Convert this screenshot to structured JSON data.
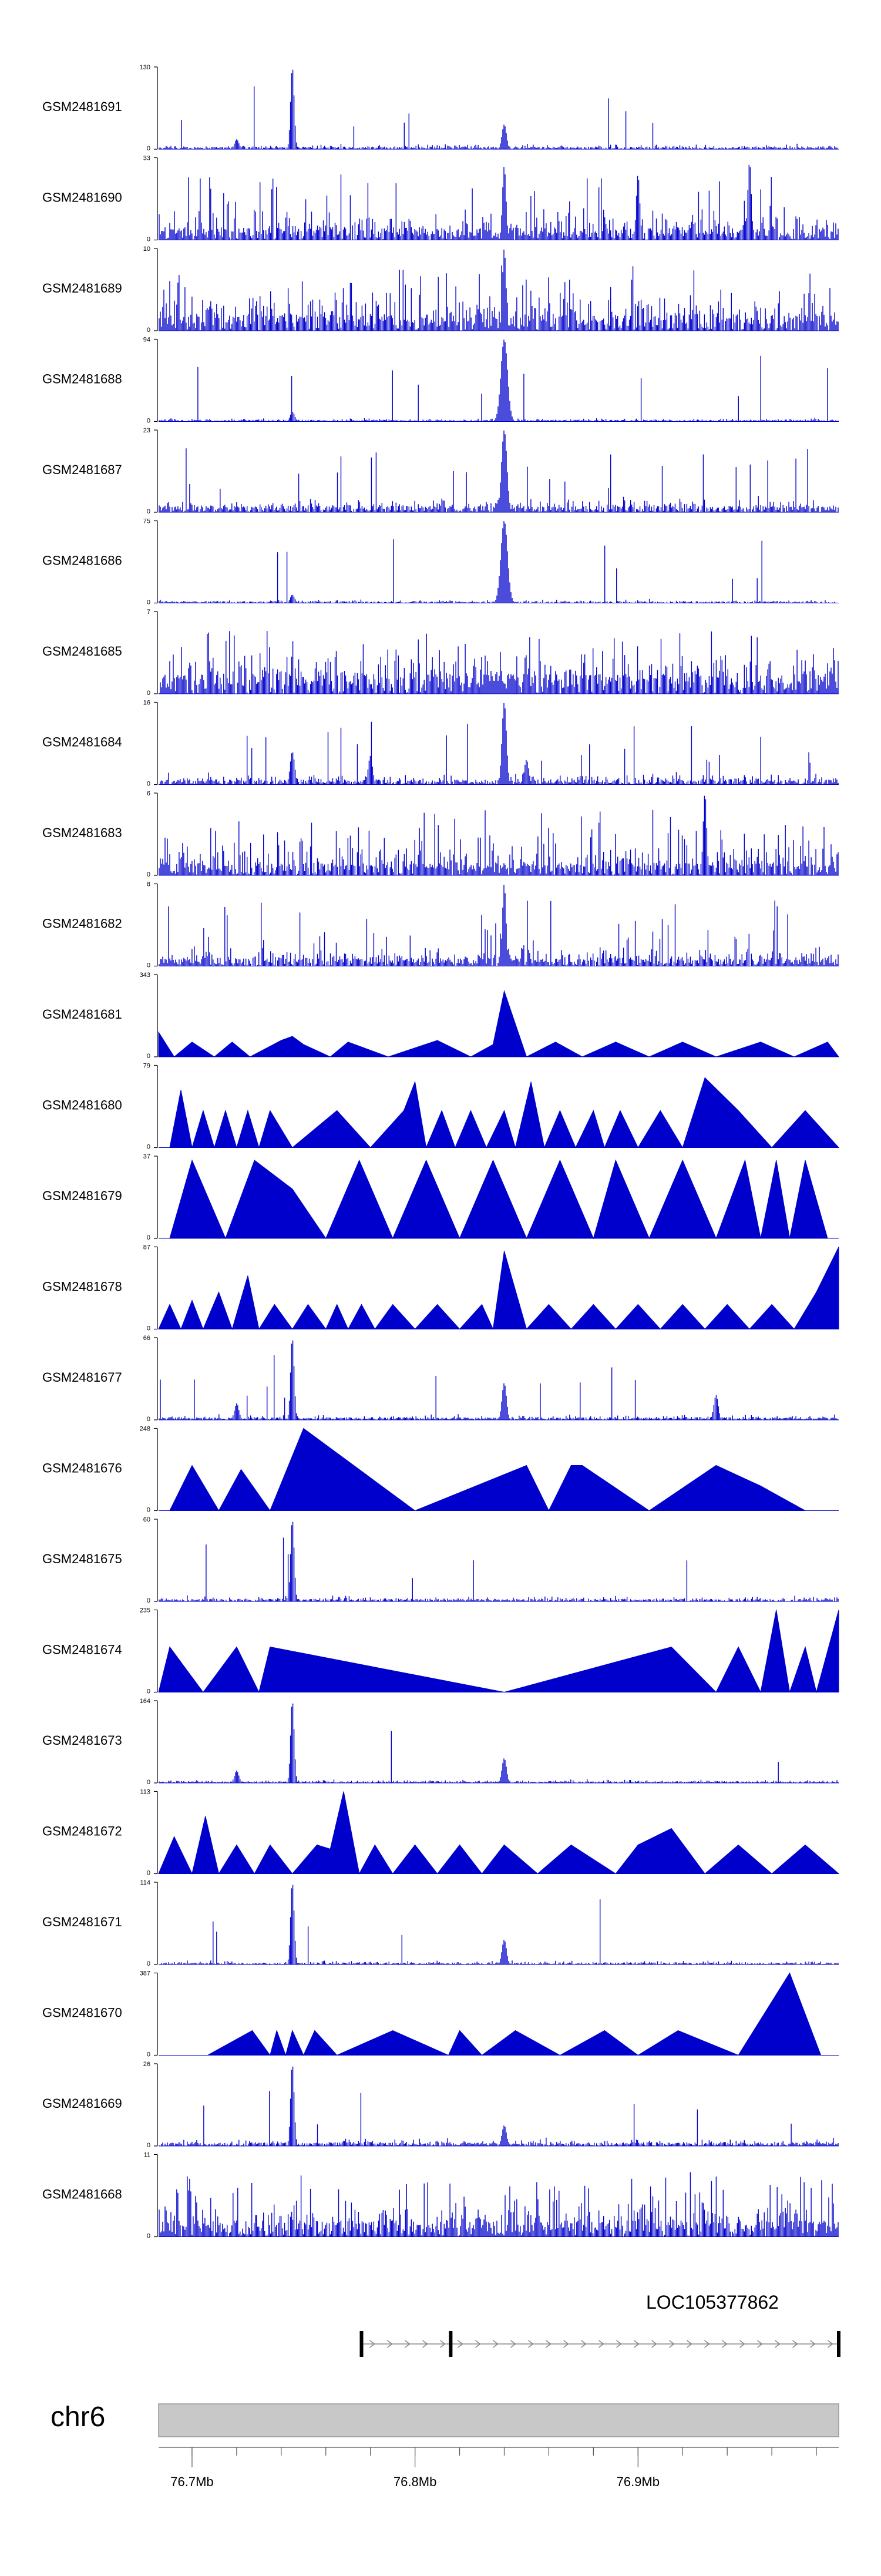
{
  "chart_data": {
    "type": "area",
    "color": "#0000cc",
    "tracks": [
      {
        "name": "GSM2481691",
        "ymin": "0",
        "ymax": "130",
        "max": 130,
        "style": "spiky",
        "baseline": 0.03,
        "noise": 0.05,
        "spikeRate": 0.02,
        "peaks": [
          {
            "x": 76.745,
            "h": 1.0,
            "w": 0.0008
          },
          {
            "x": 76.84,
            "h": 0.3,
            "w": 0.001
          },
          {
            "x": 76.72,
            "h": 0.12,
            "w": 0.001
          }
        ]
      },
      {
        "name": "GSM2481690",
        "ymin": "0",
        "ymax": "33",
        "max": 33,
        "style": "dense",
        "baseline": 0.15,
        "noise": 0.35,
        "spikeRate": 0.08,
        "peaks": [
          {
            "x": 76.84,
            "h": 0.9,
            "w": 0.0008
          },
          {
            "x": 76.95,
            "h": 0.95,
            "w": 0.0008
          },
          {
            "x": 76.9,
            "h": 0.8,
            "w": 0.0008
          }
        ]
      },
      {
        "name": "GSM2481689",
        "ymin": "0",
        "ymax": "10",
        "max": 10,
        "style": "dense",
        "baseline": 0.2,
        "noise": 0.5,
        "spikeRate": 0.12,
        "peaks": [
          {
            "x": 76.84,
            "h": 1.0,
            "w": 0.0008
          }
        ]
      },
      {
        "name": "GSM2481688",
        "ymin": "0",
        "ymax": "94",
        "max": 94,
        "style": "spiky",
        "baseline": 0.02,
        "noise": 0.03,
        "spikeRate": 0.01,
        "peaks": [
          {
            "x": 76.84,
            "h": 1.0,
            "w": 0.0015
          },
          {
            "x": 76.745,
            "h": 0.12,
            "w": 0.001
          }
        ]
      },
      {
        "name": "GSM2481687",
        "ymin": "0",
        "ymax": "23",
        "max": 23,
        "style": "spiky",
        "baseline": 0.08,
        "noise": 0.15,
        "spikeRate": 0.04,
        "peaks": [
          {
            "x": 76.84,
            "h": 1.0,
            "w": 0.0012
          }
        ]
      },
      {
        "name": "GSM2481686",
        "ymin": "0",
        "ymax": "75",
        "max": 75,
        "style": "spiky",
        "baseline": 0.02,
        "noise": 0.03,
        "spikeRate": 0.01,
        "peaks": [
          {
            "x": 76.84,
            "h": 1.0,
            "w": 0.0015
          },
          {
            "x": 76.745,
            "h": 0.1,
            "w": 0.001
          }
        ]
      },
      {
        "name": "GSM2481685",
        "ymin": "0",
        "ymax": "7",
        "max": 7,
        "style": "dense",
        "baseline": 0.25,
        "noise": 0.45,
        "spikeRate": 0.1,
        "peaks": []
      },
      {
        "name": "GSM2481684",
        "ymin": "0",
        "ymax": "16",
        "max": 16,
        "style": "spiky",
        "baseline": 0.06,
        "noise": 0.12,
        "spikeRate": 0.03,
        "peaks": [
          {
            "x": 76.84,
            "h": 1.0,
            "w": 0.001
          },
          {
            "x": 76.745,
            "h": 0.4,
            "w": 0.001
          },
          {
            "x": 76.78,
            "h": 0.35,
            "w": 0.001
          },
          {
            "x": 76.85,
            "h": 0.3,
            "w": 0.001
          }
        ]
      },
      {
        "name": "GSM2481683",
        "ymin": "0",
        "ymax": "6",
        "max": 6,
        "style": "dense",
        "baseline": 0.15,
        "noise": 0.5,
        "spikeRate": 0.1,
        "peaks": [
          {
            "x": 76.93,
            "h": 1.0,
            "w": 0.0008
          }
        ]
      },
      {
        "name": "GSM2481682",
        "ymin": "0",
        "ymax": "8",
        "max": 8,
        "style": "spiky",
        "baseline": 0.1,
        "noise": 0.25,
        "spikeRate": 0.06,
        "peaks": [
          {
            "x": 76.84,
            "h": 1.0,
            "w": 0.0008
          }
        ]
      },
      {
        "name": "GSM2481681",
        "ymin": "0",
        "ymax": "343",
        "max": 343,
        "style": "tri",
        "xs": [
          76.685,
          76.692,
          76.7,
          76.71,
          76.718,
          76.726,
          76.74,
          76.745,
          76.75,
          76.762,
          76.77,
          76.788,
          76.81,
          76.825,
          76.835,
          76.84,
          76.85,
          76.863,
          76.875,
          76.89,
          76.905,
          76.92,
          76.935,
          76.955,
          76.97,
          76.985,
          76.99
        ],
        "ys": [
          0.3,
          0,
          0.18,
          0,
          0.18,
          0,
          0.2,
          0.25,
          0.15,
          0,
          0.18,
          0,
          0.2,
          0,
          0.15,
          0.8,
          0,
          0.18,
          0,
          0.18,
          0,
          0.18,
          0,
          0.18,
          0,
          0.18,
          0
        ]
      },
      {
        "name": "GSM2481680",
        "ymin": "0",
        "ymax": "79",
        "max": 79,
        "style": "tri",
        "xs": [
          76.69,
          76.695,
          76.7,
          76.705,
          76.71,
          76.715,
          76.72,
          76.725,
          76.73,
          76.735,
          76.745,
          76.765,
          76.78,
          76.795,
          76.8,
          76.805,
          76.812,
          76.818,
          76.825,
          76.832,
          76.84,
          76.845,
          76.852,
          76.858,
          76.865,
          76.872,
          76.88,
          76.885,
          76.892,
          76.9,
          76.91,
          76.92,
          76.93,
          76.945,
          76.96,
          76.975,
          76.99
        ],
        "ys": [
          0,
          0.7,
          0,
          0.45,
          0,
          0.45,
          0,
          0.45,
          0,
          0.45,
          0,
          0.45,
          0,
          0.45,
          0.8,
          0,
          0.45,
          0,
          0.45,
          0,
          0.45,
          0,
          0.8,
          0,
          0.45,
          0,
          0.45,
          0,
          0.45,
          0,
          0.45,
          0,
          0.85,
          0.45,
          0,
          0.45,
          0
        ]
      },
      {
        "name": "GSM2481679",
        "ymin": "0",
        "ymax": "37",
        "max": 37,
        "style": "tri",
        "xs": [
          76.69,
          76.7,
          76.715,
          76.728,
          76.745,
          76.76,
          76.775,
          76.79,
          76.805,
          76.82,
          76.835,
          76.85,
          76.865,
          76.88,
          76.89,
          76.905,
          76.92,
          76.935,
          76.948,
          76.955,
          76.962,
          76.968,
          76.975,
          76.985
        ],
        "ys": [
          0,
          0.95,
          0,
          0.95,
          0.6,
          0,
          0.95,
          0,
          0.95,
          0,
          0.95,
          0,
          0.95,
          0,
          0.95,
          0,
          0.95,
          0,
          0.95,
          0,
          0.95,
          0,
          0.95,
          0
        ]
      },
      {
        "name": "GSM2481678",
        "ymin": "0",
        "ymax": "87",
        "max": 87,
        "style": "tri",
        "xs": [
          76.685,
          76.69,
          76.695,
          76.7,
          76.705,
          76.712,
          76.718,
          76.725,
          76.73,
          76.737,
          76.745,
          76.752,
          76.76,
          76.765,
          76.77,
          76.776,
          76.782,
          76.79,
          76.8,
          76.81,
          76.82,
          76.83,
          76.835,
          76.84,
          76.85,
          76.86,
          76.87,
          76.88,
          76.89,
          76.9,
          76.91,
          76.92,
          76.93,
          76.94,
          76.95,
          76.96,
          76.97,
          76.98,
          76.99
        ],
        "ys": [
          0,
          0.3,
          0,
          0.35,
          0,
          0.45,
          0,
          0.65,
          0,
          0.3,
          0,
          0.3,
          0,
          0.3,
          0,
          0.3,
          0,
          0.3,
          0,
          0.3,
          0,
          0.3,
          0,
          0.95,
          0,
          0.3,
          0,
          0.3,
          0,
          0.3,
          0,
          0.3,
          0,
          0.3,
          0,
          0.3,
          0,
          0.45,
          1.0
        ]
      },
      {
        "name": "GSM2481677",
        "ymin": "0",
        "ymax": "66",
        "max": 66,
        "style": "spiky",
        "baseline": 0.03,
        "noise": 0.05,
        "spikeRate": 0.02,
        "peaks": [
          {
            "x": 76.745,
            "h": 1.0,
            "w": 0.0008
          },
          {
            "x": 76.84,
            "h": 0.45,
            "w": 0.001
          },
          {
            "x": 76.935,
            "h": 0.3,
            "w": 0.001
          },
          {
            "x": 76.72,
            "h": 0.2,
            "w": 0.001
          }
        ]
      },
      {
        "name": "GSM2481676",
        "ymin": "0",
        "ymax": "248",
        "max": 248,
        "style": "tri",
        "xs": [
          76.69,
          76.7,
          76.712,
          76.722,
          76.735,
          76.75,
          76.8,
          76.85,
          76.86,
          76.87,
          76.875,
          76.905,
          76.935,
          76.955,
          76.975
        ],
        "ys": [
          0,
          0.55,
          0,
          0.5,
          0,
          1.0,
          0,
          0.55,
          0,
          0.55,
          0.55,
          0,
          0.55,
          0.3,
          0
        ]
      },
      {
        "name": "GSM2481675",
        "ymin": "0",
        "ymax": "60",
        "max": 60,
        "style": "spiky",
        "baseline": 0.03,
        "noise": 0.05,
        "spikeRate": 0.015,
        "peaks": [
          {
            "x": 76.745,
            "h": 1.0,
            "w": 0.0008
          }
        ]
      },
      {
        "name": "GSM2481674",
        "ymin": "0",
        "ymax": "235",
        "max": 235,
        "style": "tri",
        "xs": [
          76.685,
          76.69,
          76.705,
          76.72,
          76.73,
          76.735,
          76.84,
          76.915,
          76.935,
          76.945,
          76.955,
          76.962,
          76.968,
          76.975,
          76.98,
          76.99
        ],
        "ys": [
          0,
          0.55,
          0,
          0.55,
          0,
          0.55,
          0,
          0.55,
          0,
          0.55,
          0,
          1.0,
          0,
          0.55,
          0,
          1.0
        ]
      },
      {
        "name": "GSM2481673",
        "ymin": "0",
        "ymax": "164",
        "max": 164,
        "style": "spiky",
        "baseline": 0.02,
        "noise": 0.03,
        "spikeRate": 0.01,
        "peaks": [
          {
            "x": 76.745,
            "h": 1.0,
            "w": 0.0008
          },
          {
            "x": 76.84,
            "h": 0.3,
            "w": 0.001
          },
          {
            "x": 76.72,
            "h": 0.15,
            "w": 0.001
          }
        ]
      },
      {
        "name": "GSM2481672",
        "ymin": "0",
        "ymax": "113",
        "max": 113,
        "style": "tri",
        "xs": [
          76.685,
          76.692,
          76.7,
          76.706,
          76.712,
          76.72,
          76.728,
          76.735,
          76.745,
          76.756,
          76.762,
          76.768,
          76.775,
          76.782,
          76.79,
          76.8,
          76.81,
          76.82,
          76.83,
          76.84,
          76.855,
          76.87,
          76.89,
          76.9,
          76.915,
          76.93,
          76.945,
          76.96,
          76.975,
          76.99
        ],
        "ys": [
          0,
          0.45,
          0,
          0.7,
          0,
          0.35,
          0,
          0.35,
          0,
          0.35,
          0.3,
          1.0,
          0,
          0.35,
          0,
          0.35,
          0,
          0.35,
          0,
          0.35,
          0,
          0.35,
          0,
          0.35,
          0.55,
          0,
          0.35,
          0,
          0.35,
          0
        ]
      },
      {
        "name": "GSM2481671",
        "ymin": "0",
        "ymax": "114",
        "max": 114,
        "style": "spiky",
        "baseline": 0.02,
        "noise": 0.04,
        "spikeRate": 0.015,
        "peaks": [
          {
            "x": 76.745,
            "h": 1.0,
            "w": 0.0008
          },
          {
            "x": 76.84,
            "h": 0.3,
            "w": 0.001
          }
        ]
      },
      {
        "name": "GSM2481670",
        "ymin": "0",
        "ymax": "387",
        "max": 387,
        "style": "tri",
        "xs": [
          76.707,
          76.727,
          76.735,
          76.738,
          76.742,
          76.745,
          76.75,
          76.755,
          76.765,
          76.79,
          76.815,
          76.82,
          76.83,
          76.845,
          76.865,
          76.885,
          76.9,
          76.918,
          76.945,
          76.968,
          76.982
        ],
        "ys": [
          0,
          0.3,
          0,
          0.3,
          0,
          0.3,
          0,
          0.3,
          0,
          0.3,
          0,
          0.3,
          0,
          0.3,
          0,
          0.3,
          0,
          0.3,
          0,
          1.0,
          0
        ]
      },
      {
        "name": "GSM2481669",
        "ymin": "0",
        "ymax": "26",
        "max": 26,
        "style": "spiky",
        "baseline": 0.04,
        "noise": 0.08,
        "spikeRate": 0.02,
        "peaks": [
          {
            "x": 76.745,
            "h": 1.0,
            "w": 0.0008
          },
          {
            "x": 76.84,
            "h": 0.25,
            "w": 0.001
          }
        ]
      },
      {
        "name": "GSM2481668",
        "ymin": "0",
        "ymax": "11",
        "max": 11,
        "style": "dense",
        "baseline": 0.2,
        "noise": 0.45,
        "spikeRate": 0.12,
        "peaks": []
      }
    ],
    "x_axis": {
      "range": [
        76.685,
        76.99
      ],
      "ticks": [
        76.7,
        76.8,
        76.9
      ],
      "tick_labels": [
        "76.7Mb",
        "76.8Mb",
        "76.9Mb"
      ],
      "minor_ticks": [
        76.7,
        76.72,
        76.74,
        76.76,
        76.78,
        76.8,
        76.82,
        76.84,
        76.86,
        76.88,
        76.9,
        76.92,
        76.94,
        76.96,
        76.98
      ]
    },
    "chromosome": {
      "name": "chr6"
    },
    "gene": {
      "name": "LOC105377862",
      "start": 76.776,
      "end": 76.99,
      "exons": [
        76.776,
        76.816,
        76.99
      ],
      "strand": "+"
    }
  }
}
